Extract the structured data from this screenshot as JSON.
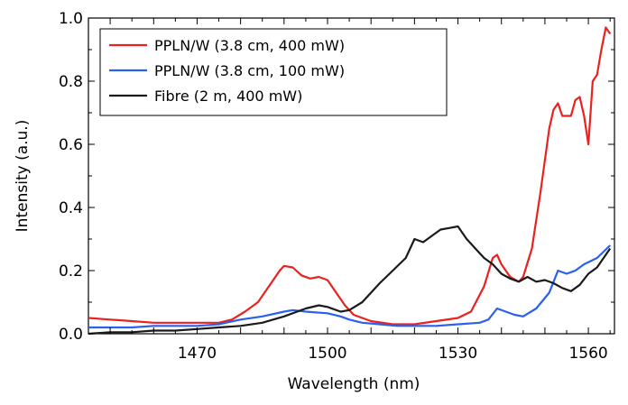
{
  "chart_data": {
    "type": "line",
    "title": "",
    "xlabel": "Wavelength (nm)",
    "ylabel": "Intensity (a.u.)",
    "xlim": [
      1445,
      1566
    ],
    "ylim": [
      0,
      1.0
    ],
    "x_ticks": [
      1470,
      1500,
      1530,
      1560
    ],
    "x_tick_labels": [
      "1470",
      "1500",
      "1530",
      "1560"
    ],
    "y_ticks": [
      0,
      0.2,
      0.4,
      0.6,
      0.8,
      1.0
    ],
    "y_tick_labels": [
      "0.0",
      "0.2",
      "0.4",
      "0.6",
      "0.8",
      "1.0"
    ],
    "grid": false,
    "legend_position": "top-left",
    "series": [
      {
        "name": "PPLN/W (3.8 cm, 400 mW)",
        "color": "#e8231f",
        "points": [
          [
            1445,
            0.05
          ],
          [
            1450,
            0.045
          ],
          [
            1455,
            0.04
          ],
          [
            1460,
            0.035
          ],
          [
            1465,
            0.035
          ],
          [
            1470,
            0.035
          ],
          [
            1475,
            0.035
          ],
          [
            1478,
            0.045
          ],
          [
            1481,
            0.07
          ],
          [
            1484,
            0.1
          ],
          [
            1487,
            0.16
          ],
          [
            1489,
            0.2
          ],
          [
            1490,
            0.215
          ],
          [
            1492,
            0.21
          ],
          [
            1494,
            0.185
          ],
          [
            1496,
            0.175
          ],
          [
            1498,
            0.18
          ],
          [
            1500,
            0.17
          ],
          [
            1502,
            0.13
          ],
          [
            1504,
            0.09
          ],
          [
            1506,
            0.06
          ],
          [
            1510,
            0.04
          ],
          [
            1515,
            0.03
          ],
          [
            1520,
            0.03
          ],
          [
            1525,
            0.04
          ],
          [
            1530,
            0.05
          ],
          [
            1533,
            0.07
          ],
          [
            1536,
            0.15
          ],
          [
            1538,
            0.24
          ],
          [
            1539,
            0.25
          ],
          [
            1540,
            0.22
          ],
          [
            1542,
            0.18
          ],
          [
            1544,
            0.165
          ],
          [
            1545,
            0.18
          ],
          [
            1547,
            0.27
          ],
          [
            1549,
            0.45
          ],
          [
            1551,
            0.65
          ],
          [
            1552,
            0.71
          ],
          [
            1553,
            0.73
          ],
          [
            1554,
            0.69
          ],
          [
            1556,
            0.69
          ],
          [
            1557,
            0.74
          ],
          [
            1558,
            0.75
          ],
          [
            1559,
            0.69
          ],
          [
            1560,
            0.6
          ],
          [
            1561,
            0.8
          ],
          [
            1562,
            0.82
          ],
          [
            1563,
            0.9
          ],
          [
            1564,
            0.97
          ],
          [
            1565,
            0.95
          ]
        ]
      },
      {
        "name": "PPLN/W (3.8 cm, 100 mW)",
        "color": "#2a5ff0",
        "points": [
          [
            1445,
            0.02
          ],
          [
            1450,
            0.02
          ],
          [
            1455,
            0.02
          ],
          [
            1460,
            0.025
          ],
          [
            1465,
            0.025
          ],
          [
            1470,
            0.025
          ],
          [
            1475,
            0.03
          ],
          [
            1480,
            0.045
          ],
          [
            1485,
            0.055
          ],
          [
            1490,
            0.07
          ],
          [
            1492,
            0.075
          ],
          [
            1495,
            0.07
          ],
          [
            1500,
            0.065
          ],
          [
            1503,
            0.055
          ],
          [
            1505,
            0.045
          ],
          [
            1508,
            0.035
          ],
          [
            1512,
            0.03
          ],
          [
            1516,
            0.025
          ],
          [
            1520,
            0.025
          ],
          [
            1525,
            0.025
          ],
          [
            1530,
            0.03
          ],
          [
            1535,
            0.035
          ],
          [
            1537,
            0.045
          ],
          [
            1539,
            0.08
          ],
          [
            1541,
            0.07
          ],
          [
            1543,
            0.06
          ],
          [
            1545,
            0.055
          ],
          [
            1548,
            0.08
          ],
          [
            1551,
            0.13
          ],
          [
            1553,
            0.2
          ],
          [
            1555,
            0.19
          ],
          [
            1557,
            0.2
          ],
          [
            1559,
            0.22
          ],
          [
            1562,
            0.24
          ],
          [
            1565,
            0.28
          ]
        ]
      },
      {
        "name": "Fibre (2 m, 400 mW)",
        "color": "#1a1a1a",
        "points": [
          [
            1445,
            0.0
          ],
          [
            1450,
            0.005
          ],
          [
            1455,
            0.005
          ],
          [
            1460,
            0.01
          ],
          [
            1465,
            0.01
          ],
          [
            1470,
            0.015
          ],
          [
            1475,
            0.02
          ],
          [
            1480,
            0.025
          ],
          [
            1485,
            0.035
          ],
          [
            1490,
            0.055
          ],
          [
            1495,
            0.08
          ],
          [
            1498,
            0.09
          ],
          [
            1500,
            0.085
          ],
          [
            1503,
            0.07
          ],
          [
            1505,
            0.075
          ],
          [
            1508,
            0.1
          ],
          [
            1512,
            0.16
          ],
          [
            1515,
            0.2
          ],
          [
            1518,
            0.24
          ],
          [
            1520,
            0.3
          ],
          [
            1522,
            0.29
          ],
          [
            1524,
            0.31
          ],
          [
            1526,
            0.33
          ],
          [
            1528,
            0.335
          ],
          [
            1530,
            0.34
          ],
          [
            1532,
            0.3
          ],
          [
            1534,
            0.27
          ],
          [
            1536,
            0.24
          ],
          [
            1538,
            0.22
          ],
          [
            1540,
            0.19
          ],
          [
            1542,
            0.175
          ],
          [
            1544,
            0.165
          ],
          [
            1546,
            0.18
          ],
          [
            1548,
            0.165
          ],
          [
            1550,
            0.17
          ],
          [
            1552,
            0.16
          ],
          [
            1554,
            0.145
          ],
          [
            1556,
            0.135
          ],
          [
            1558,
            0.155
          ],
          [
            1560,
            0.19
          ],
          [
            1562,
            0.21
          ],
          [
            1565,
            0.27
          ]
        ]
      }
    ]
  }
}
